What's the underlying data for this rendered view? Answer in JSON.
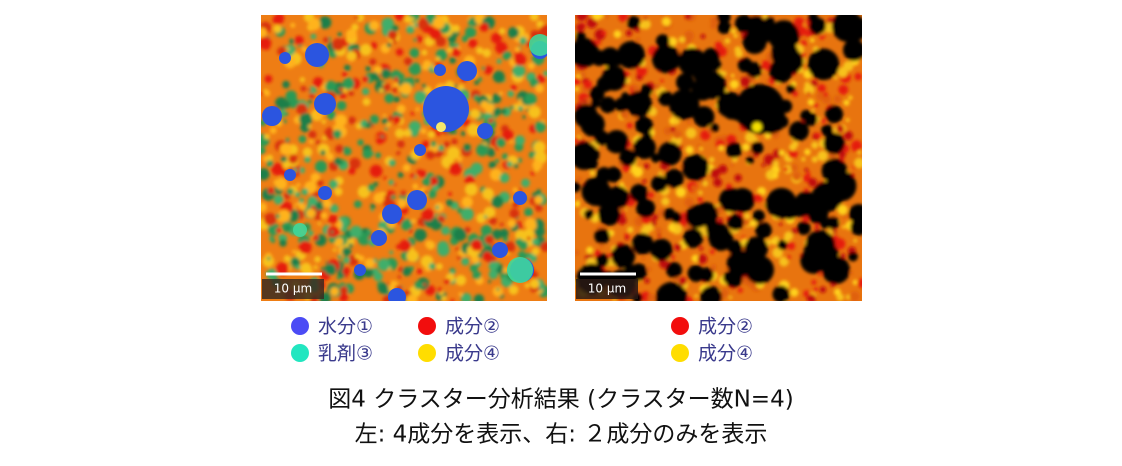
{
  "panels": [
    {
      "scale_bar": "10 μm",
      "legend": [
        {
          "label": "水分①",
          "color": "#4b4bf5"
        },
        {
          "label": "成分②",
          "color": "#f20d0d"
        },
        {
          "label": "乳剤③",
          "color": "#22e6c0"
        },
        {
          "label": "成分④",
          "color": "#ffdd00"
        }
      ]
    },
    {
      "scale_bar": "10 μm",
      "legend": [
        {
          "label": "成分②",
          "color": "#f20d0d"
        },
        {
          "label": "成分④",
          "color": "#ffdd00"
        }
      ]
    }
  ],
  "caption": {
    "line1": "図4 クラスター分析結果 (クラスター数N=4)",
    "line2": "左: 4成分を表示、右: ２成分のみを表示"
  }
}
